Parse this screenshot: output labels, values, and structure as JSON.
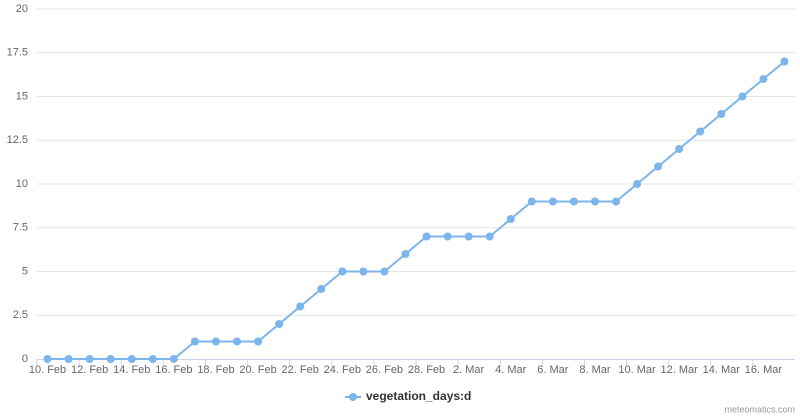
{
  "chart_data": {
    "type": "line",
    "categories": [
      "10. Feb",
      null,
      "12. Feb",
      null,
      "14. Feb",
      null,
      "16. Feb",
      null,
      "18. Feb",
      null,
      "20. Feb",
      null,
      "22. Feb",
      null,
      "24. Feb",
      null,
      "26. Feb",
      null,
      "28. Feb",
      null,
      "2. Mar",
      null,
      "4. Mar",
      null,
      "6. Mar",
      null,
      "8. Mar",
      null,
      "10. Mar",
      null,
      "12. Mar",
      null,
      "14. Mar",
      null,
      "16. Mar",
      null
    ],
    "series": [
      {
        "name": "vegetation_days:d",
        "color": "#7cb5ec",
        "values": [
          0,
          0,
          0,
          0,
          0,
          0,
          0,
          1,
          1,
          1,
          1,
          2,
          3,
          4,
          5,
          5,
          5,
          6,
          7,
          7,
          7,
          7,
          8,
          9,
          9,
          9,
          9,
          9,
          10,
          11,
          12,
          13,
          14,
          15,
          16,
          17
        ]
      }
    ],
    "ylim": [
      0,
      20
    ],
    "yticks": [
      0,
      2.5,
      5,
      7.5,
      10,
      12.5,
      15,
      17.5,
      20
    ],
    "grid": true,
    "credit": "meteomatics.com"
  }
}
